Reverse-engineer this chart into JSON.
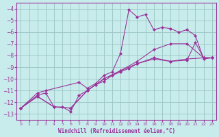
{
  "xlabel": "Windchill (Refroidissement éolien,°C)",
  "ylabel": "",
  "background_color": "#c8ecec",
  "grid_color": "#a0c8c8",
  "line_color": "#993399",
  "xlim": [
    -0.5,
    23.5
  ],
  "ylim": [
    -13.5,
    -3.5
  ],
  "xticks": [
    0,
    1,
    2,
    3,
    4,
    5,
    6,
    7,
    8,
    9,
    10,
    11,
    12,
    13,
    14,
    15,
    16,
    17,
    18,
    19,
    20,
    21,
    22,
    23
  ],
  "yticks": [
    -4,
    -5,
    -6,
    -7,
    -8,
    -9,
    -10,
    -11,
    -12,
    -13
  ],
  "series": [
    {
      "x": [
        0,
        2,
        3,
        7,
        8,
        9,
        10,
        11,
        12,
        13,
        14,
        15,
        16,
        17,
        18,
        19,
        20,
        21,
        22,
        23
      ],
      "y": [
        -12.5,
        -11.2,
        -11.0,
        -10.3,
        -10.8,
        -10.4,
        -9.7,
        -9.4,
        -7.8,
        -4.1,
        -4.7,
        -4.5,
        -5.8,
        -5.6,
        -5.7,
        -6.0,
        -5.8,
        -6.3,
        -8.3,
        -8.2
      ]
    },
    {
      "x": [
        0,
        2,
        4,
        6,
        8,
        10,
        12,
        14,
        16,
        18,
        20,
        22,
        23
      ],
      "y": [
        -12.5,
        -11.5,
        -12.4,
        -12.5,
        -11.0,
        -10.0,
        -9.3,
        -8.7,
        -8.2,
        -8.5,
        -8.3,
        -8.2,
        -8.2
      ]
    },
    {
      "x": [
        0,
        2,
        4,
        6,
        8,
        10,
        12,
        14,
        16,
        18,
        20,
        22,
        23
      ],
      "y": [
        -12.5,
        -11.5,
        -12.4,
        -12.5,
        -11.0,
        -10.0,
        -9.3,
        -8.5,
        -7.5,
        -7.0,
        -7.0,
        -8.2,
        -8.2
      ]
    },
    {
      "x": [
        0,
        2,
        3,
        4,
        5,
        6,
        7,
        8,
        9,
        10,
        11,
        12,
        13,
        14,
        16,
        18,
        20,
        21,
        22,
        23
      ],
      "y": [
        -12.5,
        -11.4,
        -11.2,
        -12.4,
        -12.4,
        -12.8,
        -11.4,
        -11.0,
        -10.5,
        -10.2,
        -9.7,
        -9.4,
        -9.1,
        -8.7,
        -8.3,
        -8.5,
        -8.4,
        -6.9,
        -8.2,
        -8.2
      ]
    }
  ]
}
